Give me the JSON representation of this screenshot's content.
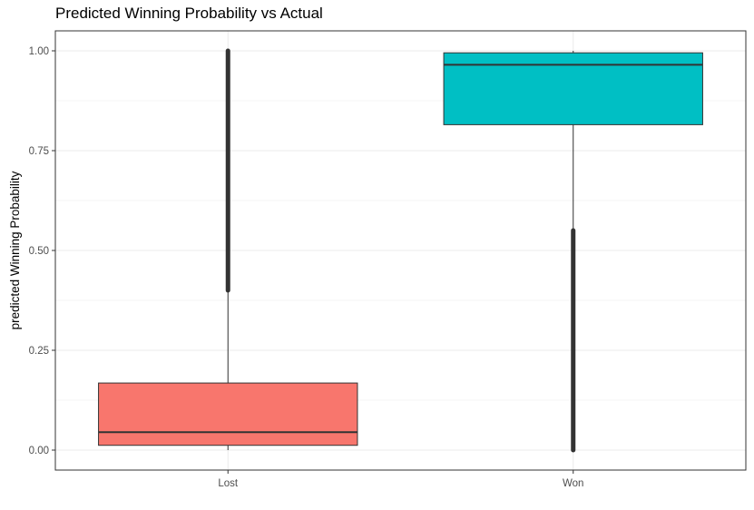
{
  "chart_data": {
    "type": "boxplot",
    "title": "Predicted Winning Probability vs Actual",
    "xlabel": "",
    "ylabel": "predicted Winning Probability",
    "ylim": [
      -0.05,
      1.05
    ],
    "y_ticks": [
      0.0,
      0.25,
      0.5,
      0.75,
      1.0
    ],
    "y_tick_labels": [
      "0.00",
      "0.25",
      "0.50",
      "0.75",
      "1.00"
    ],
    "categories": [
      "Lost",
      "Won"
    ],
    "grid": true,
    "boxes": [
      {
        "category": "Lost",
        "color": "#F8766D",
        "whisker_low": 0.0,
        "q1": 0.012,
        "median": 0.045,
        "q3": 0.168,
        "whisker_high": 0.4,
        "outliers_range": [
          0.4,
          1.0
        ]
      },
      {
        "category": "Won",
        "color": "#00BFC4",
        "whisker_low": 0.55,
        "q1": 0.815,
        "median": 0.965,
        "q3": 0.995,
        "whisker_high": 1.0,
        "outliers_range": [
          0.0,
          0.55
        ]
      }
    ]
  }
}
